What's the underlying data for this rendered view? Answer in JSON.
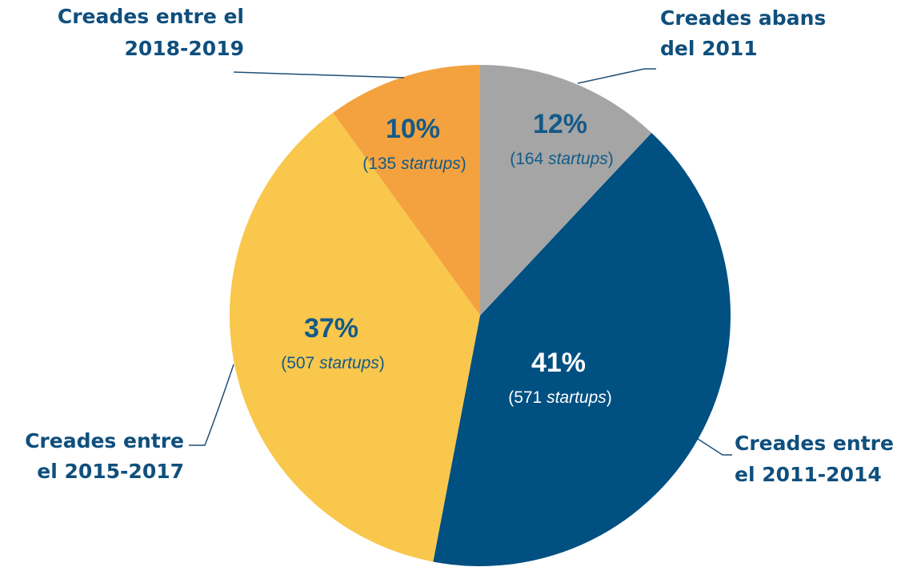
{
  "chart_data": {
    "type": "pie",
    "categories": [
      [
        "Creades abans",
        "del 2011"
      ],
      [
        "Creades entre",
        "el 2011-2014"
      ],
      [
        "Creades entre",
        "el 2015-2017"
      ],
      [
        "Creades entre el",
        "2018-2019"
      ]
    ],
    "values": [
      12,
      41,
      37,
      10
    ],
    "value_labels": [
      "12%",
      "41%",
      "37%",
      "10%"
    ],
    "count_labels": [
      "(164 startups)",
      "(571 startups)",
      "(507 startups)",
      "(135 startups)"
    ],
    "colors": [
      "#a5a5a5",
      "#005082",
      "#f9c74c",
      "#f4a23f"
    ]
  }
}
